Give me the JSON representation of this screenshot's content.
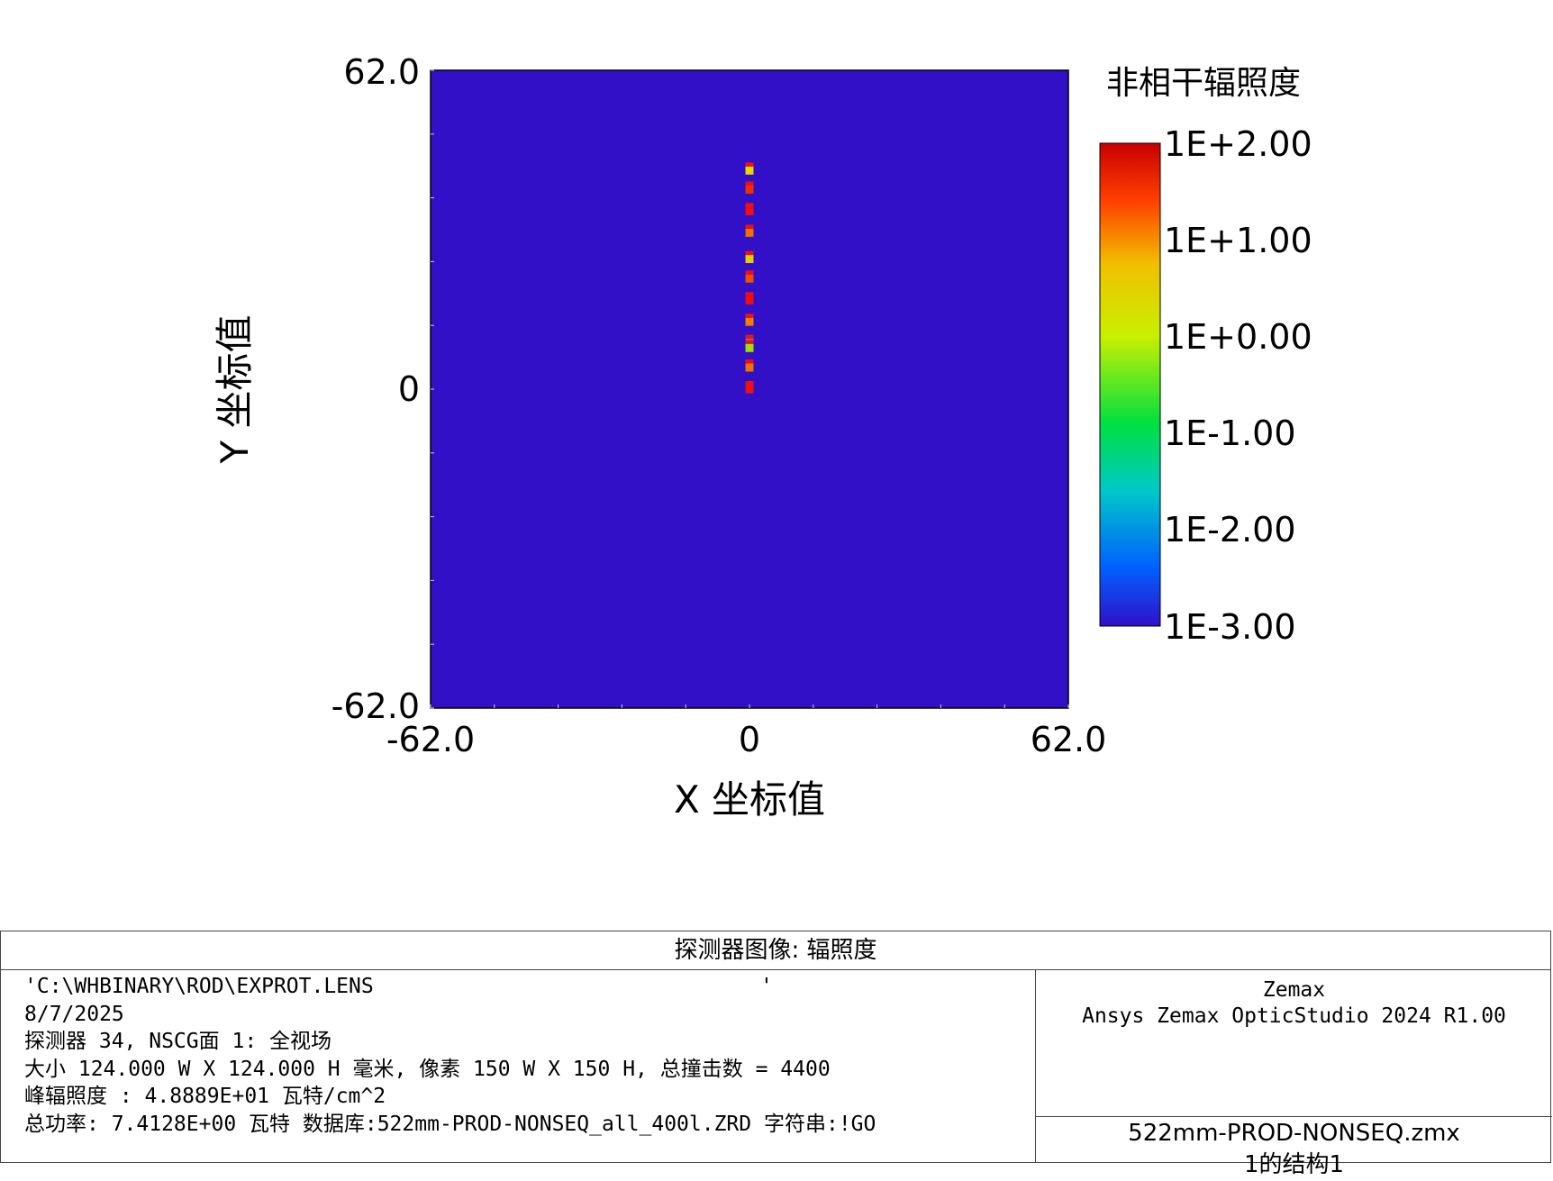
{
  "chart_data": {
    "type": "heatmap",
    "title": "非相干辐照度",
    "xlabel": "X 坐标值",
    "ylabel": "Y 坐标值",
    "xlim": [
      -62.0,
      62.0
    ],
    "ylim": [
      -62.0,
      62.0
    ],
    "x_ticks": [
      "-62.0",
      "0",
      "62.0"
    ],
    "y_ticks": [
      "62.0",
      "0",
      "-62.0"
    ],
    "colorbar": {
      "scale": "log",
      "range": [
        -3.0,
        2.0
      ],
      "tick_labels": [
        "1E+2.00",
        "1E+1.00",
        "1E+0.00",
        "1E-1.00",
        "1E-2.00",
        "1E-3.00"
      ],
      "colors": [
        "#3010c8",
        "#0060ff",
        "#00d0d0",
        "#00e000",
        "#c8f000",
        "#f0c000",
        "#ff6000",
        "#d00000"
      ]
    },
    "background_color": "#3210c8",
    "points": [
      {
        "x": 0.0,
        "y": 42.5,
        "color": "#e8d800"
      },
      {
        "x": 0.0,
        "y": 38.8,
        "color": "#f03000"
      },
      {
        "x": 0.0,
        "y": 34.6,
        "color": "#f01010"
      },
      {
        "x": 0.0,
        "y": 30.4,
        "color": "#f07000"
      },
      {
        "x": 0.0,
        "y": 25.3,
        "color": "#e0d000"
      },
      {
        "x": 0.0,
        "y": 21.5,
        "color": "#f05000"
      },
      {
        "x": 0.0,
        "y": 17.3,
        "color": "#f01010"
      },
      {
        "x": 0.0,
        "y": 13.1,
        "color": "#f08000"
      },
      {
        "x": 0.0,
        "y": 9.0,
        "color": "#20c0c0"
      },
      {
        "x": 0.0,
        "y": 8.0,
        "color": "#a0e000"
      },
      {
        "x": 0.0,
        "y": 4.2,
        "color": "#f07000"
      },
      {
        "x": 0.0,
        "y": 0.0,
        "color": "#f01010"
      }
    ]
  },
  "footer": {
    "title": "探测器图像: 辐照度",
    "lines": [
      "'C:\\WHBINARY\\ROD\\EXPROT.LENS                               '",
      "8/7/2025",
      "探测器 34, NSCG面 1: 全视场",
      "大小 124.000 W X 124.000 H 毫米, 像素 150 W X 150 H, 总撞击数 = 4400",
      "峰辐照度 : 4.8889E+01 瓦特/cm^2",
      "总功率: 7.4128E+00 瓦特 数据库:522mm-PROD-NONSEQ_all_400l.ZRD 字符串:!GO"
    ],
    "company": "Zemax",
    "product": "Ansys Zemax OpticStudio 2024 R1.00",
    "file": "522mm-PROD-NONSEQ.zmx",
    "config": "1的结构1"
  }
}
